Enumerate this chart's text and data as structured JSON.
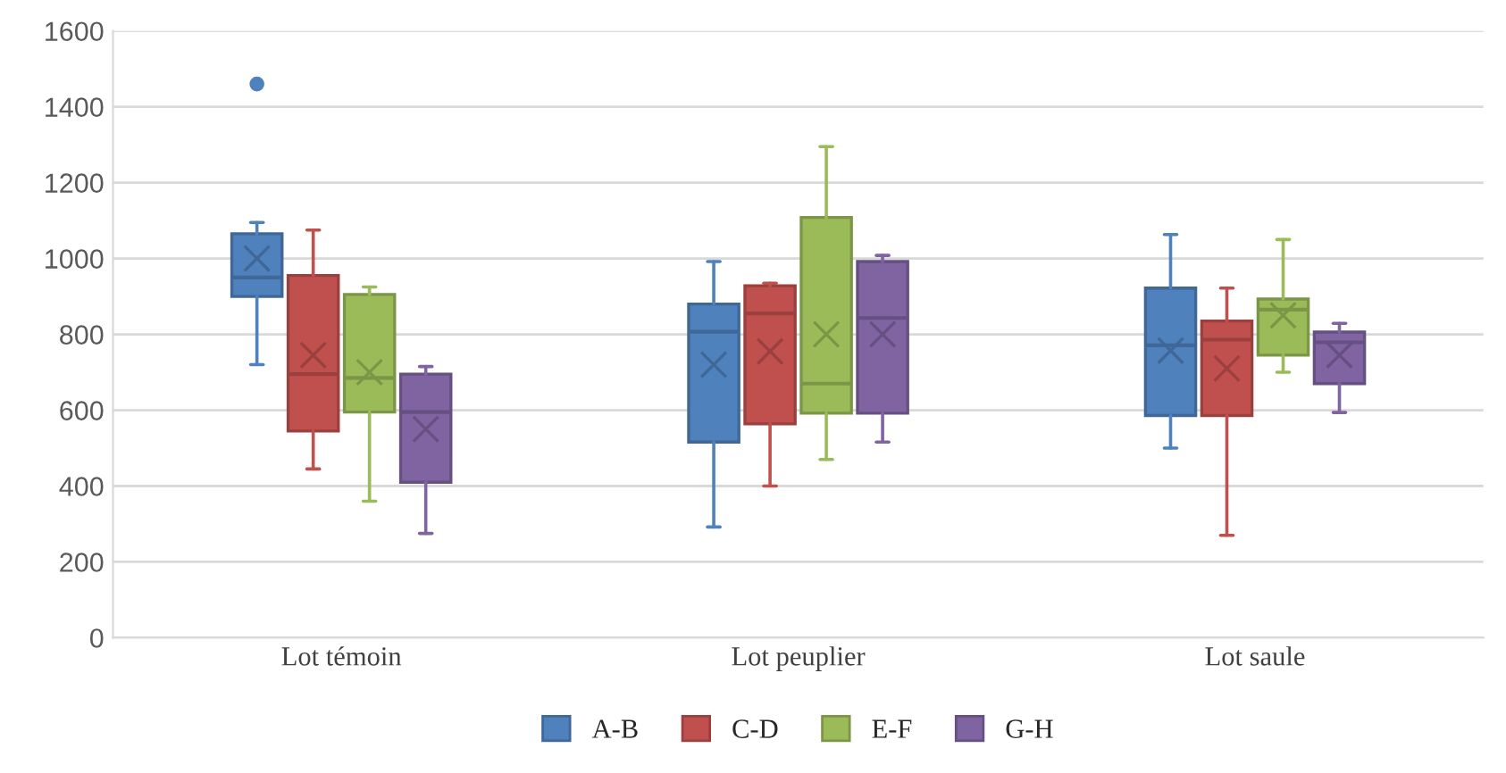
{
  "chart_data": {
    "type": "box",
    "categories": [
      "Lot témoin",
      "Lot peuplier",
      "Lot saule"
    ],
    "ylim": [
      0,
      1600
    ],
    "yticks": [
      0,
      200,
      400,
      600,
      800,
      1000,
      1200,
      1400,
      1600
    ],
    "grid": "y",
    "legend": "bottom",
    "series": [
      {
        "name": "A-B",
        "color": "#4f81bd",
        "boxes": [
          {
            "low": 720,
            "q1": 900,
            "median": 950,
            "q3": 1065,
            "high": 1095,
            "mean": 1000,
            "outliers": [
              1460
            ]
          },
          {
            "low": 292,
            "q1": 516,
            "median": 807,
            "q3": 880,
            "high": 992,
            "mean": 720
          },
          {
            "low": 500,
            "q1": 586,
            "median": 771,
            "q3": 922,
            "high": 1063,
            "mean": 757
          }
        ]
      },
      {
        "name": "C-D",
        "color": "#c0504d",
        "boxes": [
          {
            "low": 445,
            "q1": 545,
            "median": 695,
            "q3": 955,
            "high": 1075,
            "mean": 745
          },
          {
            "low": 400,
            "q1": 564,
            "median": 855,
            "q3": 928,
            "high": 935,
            "mean": 755
          },
          {
            "low": 270,
            "q1": 586,
            "median": 786,
            "q3": 835,
            "high": 922,
            "mean": 710
          }
        ]
      },
      {
        "name": "E-F",
        "color": "#9bbb59",
        "boxes": [
          {
            "low": 360,
            "q1": 595,
            "median": 685,
            "q3": 905,
            "high": 925,
            "mean": 700
          },
          {
            "low": 470,
            "q1": 592,
            "median": 670,
            "q3": 1108,
            "high": 1295,
            "mean": 800
          },
          {
            "low": 700,
            "q1": 745,
            "median": 865,
            "q3": 893,
            "high": 1050,
            "mean": 850
          }
        ]
      },
      {
        "name": "G-H",
        "color": "#8064a2",
        "boxes": [
          {
            "low": 275,
            "q1": 410,
            "median": 595,
            "q3": 695,
            "high": 715,
            "mean": 550
          },
          {
            "low": 516,
            "q1": 592,
            "median": 843,
            "q3": 992,
            "high": 1008,
            "mean": 800
          },
          {
            "low": 594,
            "q1": 670,
            "median": 779,
            "q3": 806,
            "high": 829,
            "mean": 745
          }
        ]
      }
    ]
  }
}
